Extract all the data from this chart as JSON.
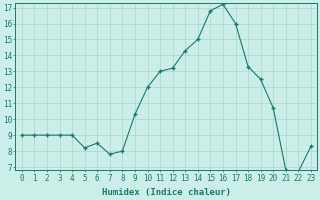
{
  "x": [
    0,
    1,
    2,
    3,
    4,
    5,
    6,
    7,
    8,
    9,
    10,
    11,
    12,
    13,
    14,
    15,
    16,
    17,
    18,
    19,
    20,
    21,
    22,
    23
  ],
  "y": [
    9.0,
    9.0,
    9.0,
    9.0,
    9.0,
    8.2,
    8.5,
    7.8,
    8.0,
    10.3,
    12.0,
    13.0,
    13.2,
    14.3,
    15.0,
    16.8,
    17.2,
    16.0,
    13.3,
    12.5,
    10.7,
    6.8,
    6.7,
    8.3
  ],
  "xlabel": "Humidex (Indice chaleur)",
  "ylim": [
    7,
    17
  ],
  "xlim": [
    -0.5,
    23.5
  ],
  "yticks": [
    7,
    8,
    9,
    10,
    11,
    12,
    13,
    14,
    15,
    16,
    17
  ],
  "xticks": [
    0,
    1,
    2,
    3,
    4,
    5,
    6,
    7,
    8,
    9,
    10,
    11,
    12,
    13,
    14,
    15,
    16,
    17,
    18,
    19,
    20,
    21,
    22,
    23
  ],
  "line_color": "#1a7a6a",
  "marker": "+",
  "marker_size": 3.5,
  "bg_color": "#cceee8",
  "grid_color": "#aad4cc",
  "axis_color": "#1a7a6a",
  "tick_label_fontsize": 5.5,
  "xlabel_fontsize": 6.5
}
